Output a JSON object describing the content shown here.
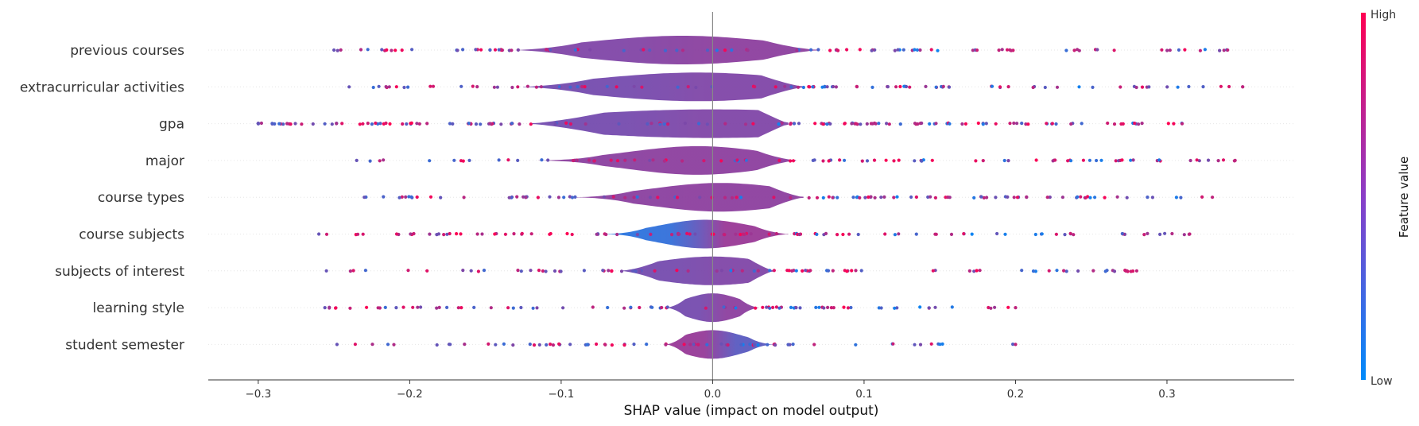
{
  "chart_data": {
    "type": "scatter",
    "subtype": "shap-violin-summary",
    "features": [
      {
        "name": "previous courses",
        "range": [
          -0.25,
          0.34
        ],
        "peak": -0.02,
        "spread": 0.06,
        "body": [
          -0.13,
          0.07
        ],
        "n": 150,
        "low_side": 0.5,
        "high_side": 0.55
      },
      {
        "name": "extracurricular activities",
        "range": [
          -0.24,
          0.35
        ],
        "peak": -0.01,
        "spread": 0.065,
        "body": [
          -0.125,
          0.06
        ],
        "n": 150,
        "low_side": 0.45,
        "high_side": 0.5
      },
      {
        "name": "gpa",
        "range": [
          -0.3,
          0.31
        ],
        "peak": 0.0,
        "spread": 0.1,
        "body": [
          -0.12,
          0.05
        ],
        "n": 200,
        "low_side": 0.45,
        "high_side": 0.5
      },
      {
        "name": "major",
        "range": [
          -0.235,
          0.345
        ],
        "peak": -0.01,
        "spread": 0.045,
        "body": [
          -0.115,
          0.055
        ],
        "n": 150,
        "low_side": 0.55,
        "high_side": 0.55
      },
      {
        "name": "course types",
        "range": [
          -0.23,
          0.33
        ],
        "peak": 0.005,
        "spread": 0.045,
        "body": [
          -0.09,
          0.06
        ],
        "n": 150,
        "low_side": 0.55,
        "high_side": 0.55
      },
      {
        "name": "course subjects",
        "range": [
          -0.26,
          0.315
        ],
        "peak": -0.005,
        "spread": 0.03,
        "body": [
          -0.07,
          0.05
        ],
        "n": 140,
        "low_side": 0.15,
        "high_side": 0.6
      },
      {
        "name": "subjects of interest",
        "range": [
          -0.255,
          0.28
        ],
        "peak": 0.0,
        "spread": 0.04,
        "body": [
          -0.06,
          0.04
        ],
        "n": 120,
        "low_side": 0.45,
        "high_side": 0.5
      },
      {
        "name": "learning style",
        "range": [
          -0.256,
          0.2
        ],
        "peak": 0.0,
        "spread": 0.018,
        "body": [
          -0.03,
          0.03
        ],
        "n": 110,
        "low_side": 0.45,
        "high_side": 0.55
      },
      {
        "name": "student semester",
        "range": [
          -0.248,
          0.2
        ],
        "peak": 0.0,
        "spread": 0.02,
        "body": [
          -0.03,
          0.04
        ],
        "n": 100,
        "low_side": 0.6,
        "high_side": 0.35
      }
    ],
    "x_ticks": [
      -0.3,
      -0.2,
      -0.1,
      0.0,
      0.1,
      0.2,
      0.3
    ],
    "x_tick_labels": [
      "−0.3",
      "−0.2",
      "−0.1",
      "0.0",
      "0.1",
      "0.2",
      "0.3"
    ],
    "xlim": [
      -0.333,
      0.384
    ],
    "xlabel": "SHAP value (impact on model output)",
    "colorbar": {
      "title": "Feature value",
      "high_label": "High",
      "low_label": "Low",
      "low_color": "#008bfb",
      "high_color": "#ff0052"
    },
    "grid": false
  },
  "colors": {
    "axis": "#333333",
    "zero_line": "#888888",
    "row_guide": "#e6e6e6"
  }
}
